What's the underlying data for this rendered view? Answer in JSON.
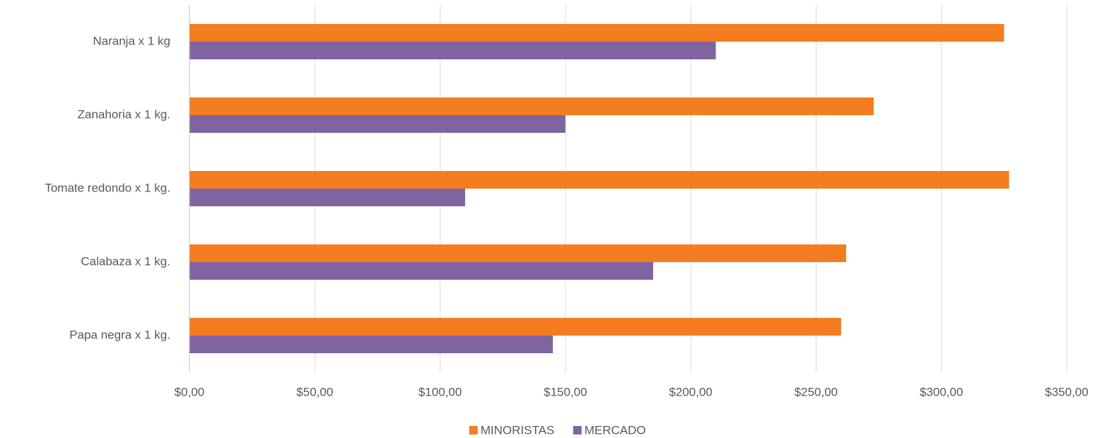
{
  "chart_data": {
    "type": "barh",
    "categories": [
      "Naranja x 1 kg",
      "Zanahoria x 1 kg.",
      "Tomate redondo x 1 kg.",
      "Calabaza x 1 kg.",
      "Papa negra x 1 kg."
    ],
    "series": [
      {
        "name": "MINORISTAS",
        "color": "#F47D20",
        "values": [
          325,
          273,
          327,
          262,
          260
        ]
      },
      {
        "name": "MERCADO",
        "color": "#8064A2",
        "values": [
          210,
          150,
          110,
          185,
          145
        ]
      }
    ],
    "xlim": [
      0,
      350
    ],
    "xticks": [
      {
        "value": 0,
        "label": "$0,00"
      },
      {
        "value": 50,
        "label": "$50,00"
      },
      {
        "value": 100,
        "label": "$100,00"
      },
      {
        "value": 150,
        "label": "$150,00"
      },
      {
        "value": 200,
        "label": "$200,00"
      },
      {
        "value": 250,
        "label": "$250,00"
      },
      {
        "value": 300,
        "label": "$300,00"
      },
      {
        "value": 350,
        "label": "$350,00"
      }
    ],
    "grid": true,
    "legend": "bottom"
  }
}
